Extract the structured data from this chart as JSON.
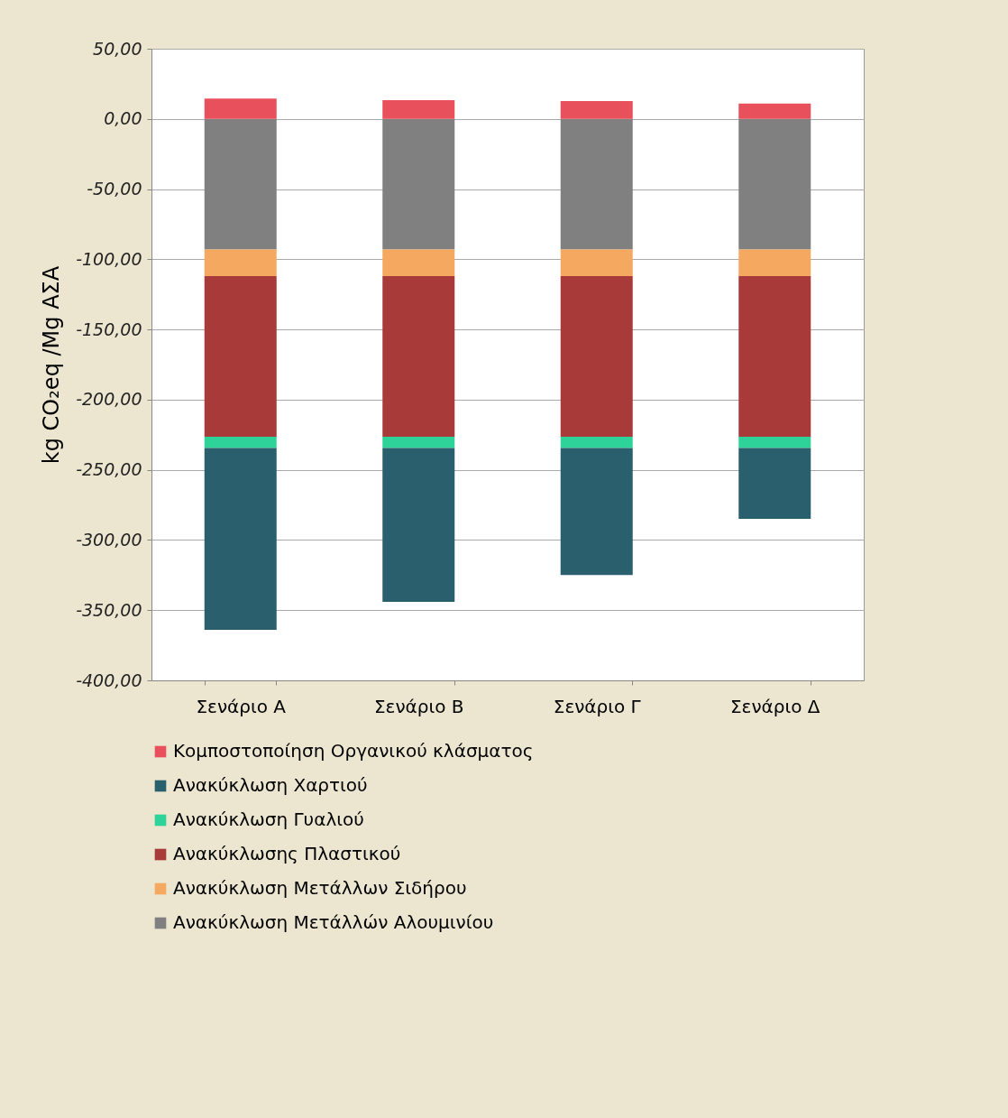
{
  "chart_data": {
    "type": "bar",
    "stacked": true,
    "ylabel": "kg CO₂eq /Mg ΑΣΑ",
    "categories": [
      "Σενάριο Α",
      "Σενάριο Β",
      "Σενάριο Γ",
      "Σενάριο Δ"
    ],
    "series": [
      {
        "name": "Ανακύκλωση Μετάλλών Αλουμινίου",
        "color": "#808080",
        "values": [
          -93,
          -93,
          -93,
          -93
        ]
      },
      {
        "name": "Ανακύκλωση Μετάλλων Σιδήρου",
        "color": "#f4a860",
        "values": [
          -19,
          -19,
          -19,
          -19
        ]
      },
      {
        "name": "Ανακύκλωσης Πλαστικού",
        "color": "#a83a3a",
        "values": [
          -114.5,
          -114.5,
          -114.5,
          -114.5
        ]
      },
      {
        "name": "Ανακύκλωση Γυαλιού",
        "color": "#2ed39a",
        "values": [
          -8,
          -8,
          -8,
          -8
        ]
      },
      {
        "name": "Ανακύκλωση Χαρτιού",
        "color": "#2a5f6e",
        "values": [
          -129.5,
          -109.5,
          -90.5,
          -50.5
        ]
      },
      {
        "name": "Κομποστοποίηση Οργανικού κλάσματος",
        "color": "#e8505b",
        "values": [
          14.5,
          13.3,
          12.7,
          10.9
        ]
      }
    ],
    "ylim": [
      -400,
      50
    ],
    "yticks": [
      {
        "value": 50,
        "label": "50,00"
      },
      {
        "value": 0,
        "label": "0,00"
      },
      {
        "value": -50,
        "label": "-50,00"
      },
      {
        "value": -100,
        "label": "-100,00"
      },
      {
        "value": -150,
        "label": "-150,00"
      },
      {
        "value": -200,
        "label": "-200,00"
      },
      {
        "value": -250,
        "label": "-250,00"
      },
      {
        "value": -300,
        "label": "-300,00"
      },
      {
        "value": -350,
        "label": "-350,00"
      },
      {
        "value": -400,
        "label": "-400,00"
      }
    ],
    "grid": "y",
    "legend": "bottom"
  }
}
